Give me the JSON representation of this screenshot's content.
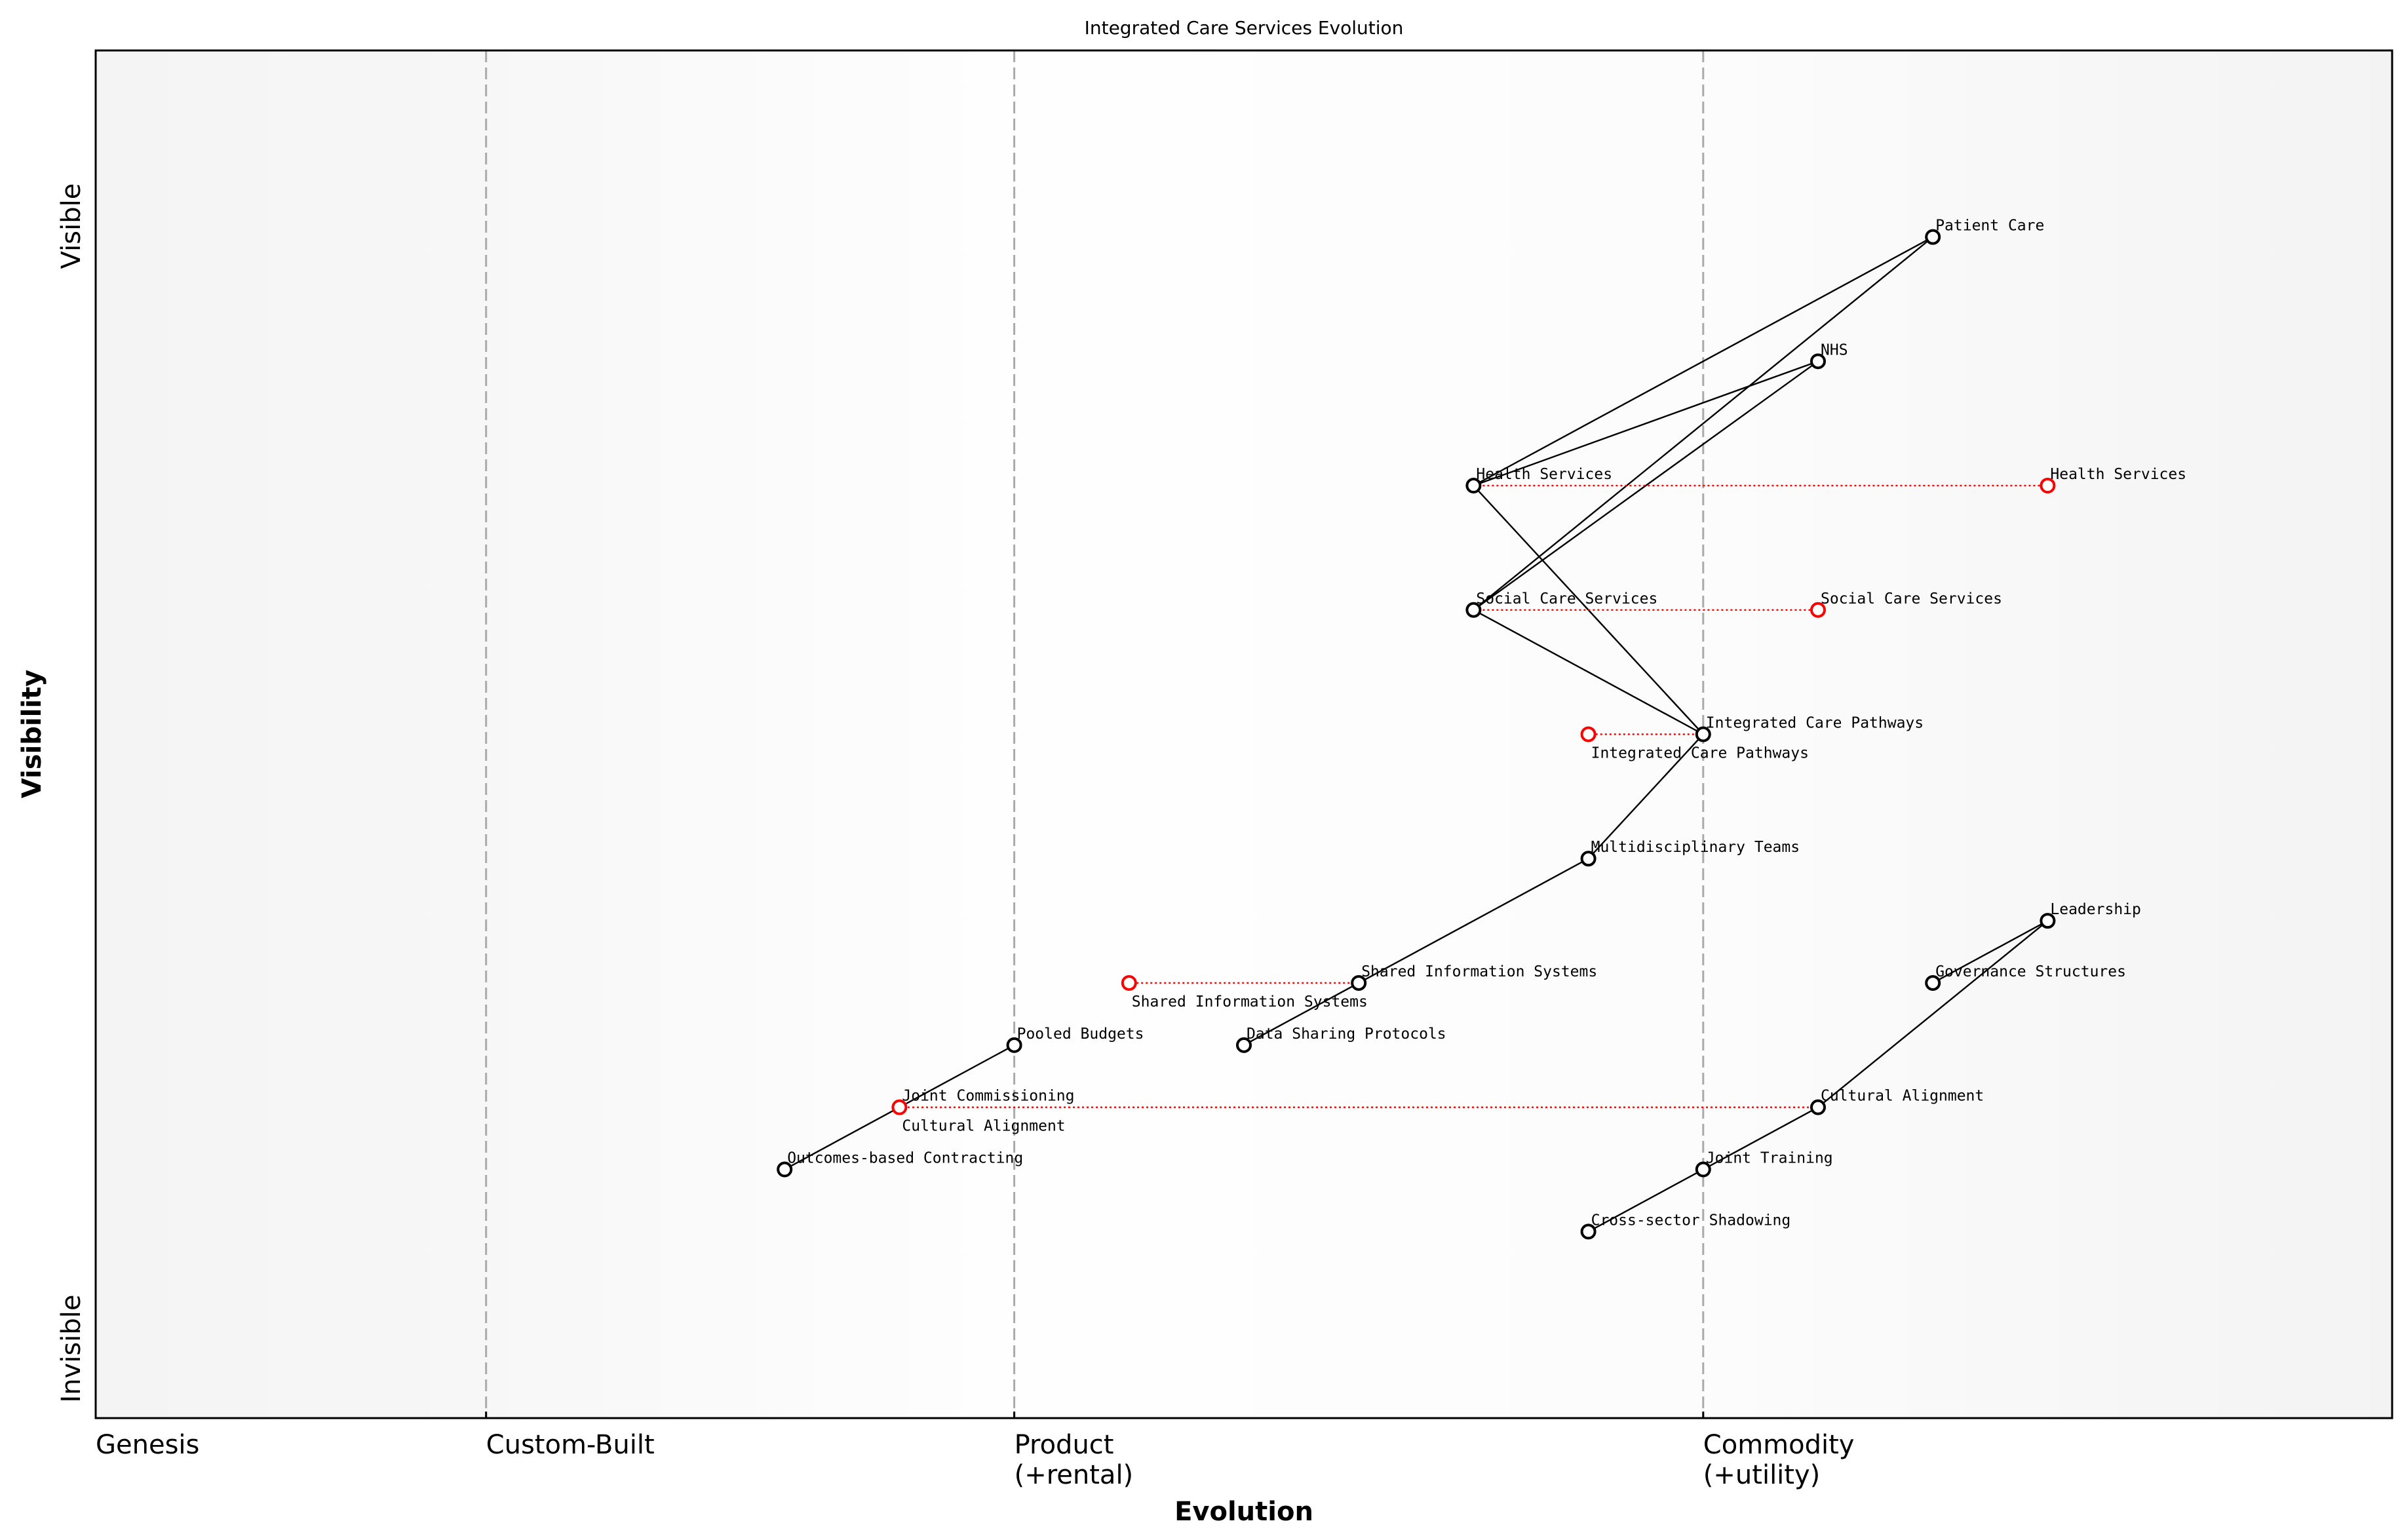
{
  "chart_data": {
    "type": "wardley-map",
    "title": "Integrated Care Services Evolution",
    "xlabel": "Evolution",
    "ylabel": "Visibility",
    "xlim": [
      0,
      1
    ],
    "ylim": [
      0,
      1.1
    ],
    "y_top_label": "Visible",
    "y_bottom_label": "Invisible",
    "stages": [
      {
        "label": "Genesis",
        "x": 0
      },
      {
        "label": "Custom-Built",
        "x": 0.17
      },
      {
        "label": "Product\n(+rental)",
        "x": 0.4
      },
      {
        "label": "Commodity\n(+utility)",
        "x": 0.7
      }
    ],
    "colors": {
      "component": "#000000",
      "evolution": "#ff0000",
      "stage_line": "#aaaaaa"
    },
    "components": [
      {
        "name": "Patient Care",
        "x": 0.8,
        "y": 0.95
      },
      {
        "name": "NHS",
        "x": 0.75,
        "y": 0.85
      },
      {
        "name": "Health Services",
        "x": 0.6,
        "y": 0.75
      },
      {
        "name": "Social Care Services",
        "x": 0.6,
        "y": 0.65
      },
      {
        "name": "Integrated Care Pathways",
        "x": 0.7,
        "y": 0.55
      },
      {
        "name": "Multidisciplinary Teams",
        "x": 0.65,
        "y": 0.45
      },
      {
        "name": "Leadership",
        "x": 0.85,
        "y": 0.4
      },
      {
        "name": "Shared Information Systems",
        "x": 0.55,
        "y": 0.35
      },
      {
        "name": "Governance Structures",
        "x": 0.8,
        "y": 0.35
      },
      {
        "name": "Pooled Budgets",
        "x": 0.4,
        "y": 0.3
      },
      {
        "name": "Data Sharing Protocols",
        "x": 0.5,
        "y": 0.3
      },
      {
        "name": "Joint Commissioning",
        "x": 0.35,
        "y": 0.25
      },
      {
        "name": "Cultural Alignment",
        "x": 0.75,
        "y": 0.25
      },
      {
        "name": "Outcomes-based Contracting",
        "x": 0.3,
        "y": 0.2
      },
      {
        "name": "Joint Training",
        "x": 0.7,
        "y": 0.2
      },
      {
        "name": "Cross-sector Shadowing",
        "x": 0.65,
        "y": 0.15
      }
    ],
    "links": [
      [
        "Patient Care",
        "Health Services"
      ],
      [
        "Patient Care",
        "Social Care Services"
      ],
      [
        "NHS",
        "Health Services"
      ],
      [
        "NHS",
        "Social Care Services"
      ],
      [
        "Health Services",
        "Integrated Care Pathways"
      ],
      [
        "Social Care Services",
        "Integrated Care Pathways"
      ],
      [
        "Integrated Care Pathways",
        "Multidisciplinary Teams"
      ],
      [
        "Multidisciplinary Teams",
        "Shared Information Systems"
      ],
      [
        "Shared Information Systems",
        "Data Sharing Protocols"
      ],
      [
        "Pooled Budgets",
        "Joint Commissioning"
      ],
      [
        "Joint Commissioning",
        "Outcomes-based Contracting"
      ],
      [
        "Leadership",
        "Governance Structures"
      ],
      [
        "Leadership",
        "Cultural Alignment"
      ],
      [
        "Cultural Alignment",
        "Joint Training"
      ],
      [
        "Joint Training",
        "Cross-sector Shadowing"
      ]
    ],
    "evolutions": [
      {
        "name": "Health Services",
        "from_x": 0.6,
        "to_x": 0.85,
        "y": 0.75
      },
      {
        "name": "Social Care Services",
        "from_x": 0.6,
        "to_x": 0.75,
        "y": 0.65
      },
      {
        "name": "Integrated Care Pathways",
        "from_x": 0.7,
        "to_x": 0.65,
        "y": 0.55
      },
      {
        "name": "Shared Information Systems",
        "from_x": 0.55,
        "to_x": 0.45,
        "y": 0.35
      },
      {
        "name": "Cultural Alignment",
        "from_x": 0.75,
        "to_x": 0.35,
        "y": 0.25
      }
    ]
  }
}
